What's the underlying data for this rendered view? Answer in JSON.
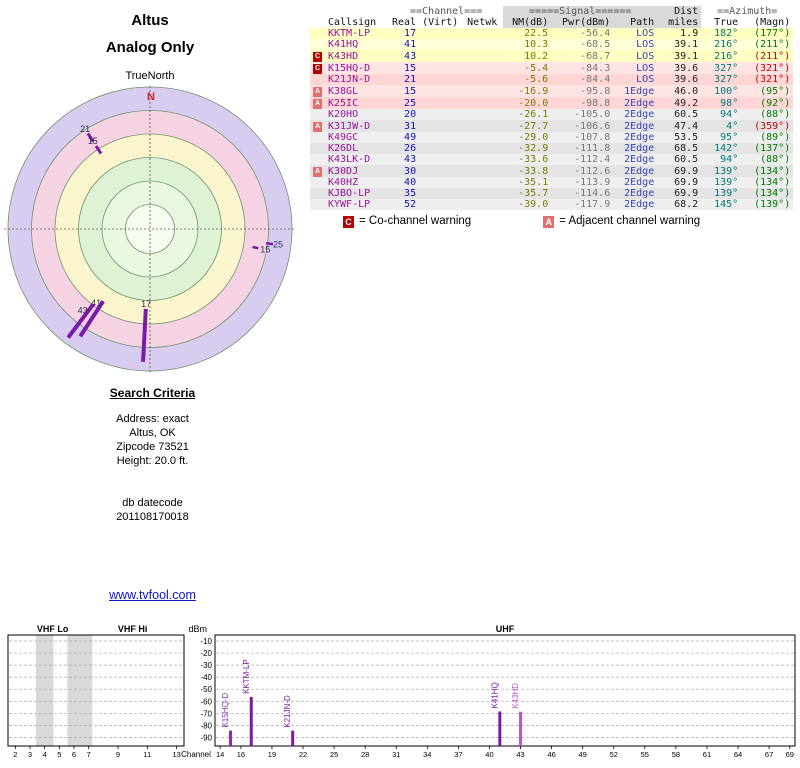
{
  "radar": {
    "title": "Altus",
    "subtitle": "Analog Only",
    "north_ref_label": "TrueNorth",
    "north_label": "N",
    "ring_colors": [
      "#d8cdf0",
      "#f6d3e3",
      "#faf5cd",
      "#def3d4",
      "#eaf8e2",
      "#f7fcf1"
    ],
    "ring_radii": [
      142,
      118.5,
      95,
      71.5,
      48,
      24.5
    ],
    "spoke_color": "#7a1ba6",
    "label_color": "#333355",
    "spokes": [
      {
        "channel": "17",
        "az": 183,
        "r1": 80,
        "r2": 133,
        "label_r": 75,
        "label_dx": 0,
        "width": 4
      },
      {
        "channel": "41",
        "az": 213,
        "r1": 86,
        "r2": 128,
        "label_r": 88,
        "label_dx": -6,
        "width": 4
      },
      {
        "channel": "43",
        "az": 217,
        "r1": 94,
        "r2": 136,
        "label_r": 102,
        "label_dx": -6,
        "width": 4
      },
      {
        "channel": "21",
        "az": 327,
        "r1": 104,
        "r2": 114,
        "label_r": 119,
        "label_dx": 0,
        "width": 3
      },
      {
        "channel": "15",
        "az": 327,
        "r1": 90,
        "r2": 99,
        "label_r": 105,
        "label_dx": 0,
        "width": 3
      },
      {
        "channel": "15",
        "az": 100,
        "r1": 104,
        "r2": 110,
        "label_r": 117,
        "label_dx": 0,
        "width": 2.5
      },
      {
        "channel": "25",
        "az": 97,
        "r1": 117,
        "r2": 124,
        "label_r": 129,
        "label_dx": 0,
        "width": 2.5
      }
    ]
  },
  "table": {
    "group_headers": [
      "",
      "==Channel===",
      "=====Signal======",
      "Dist",
      "==Azimuth="
    ],
    "col_headers": [
      "",
      "Callsign",
      "Real",
      "(Virt)",
      "Netwk",
      "NM(dB)",
      "Pwr(dBm)",
      "Path",
      "miles",
      "True",
      "(Magn)"
    ],
    "rows": [
      {
        "warn": "",
        "callsign": "KKTM-LP",
        "real": "17",
        "virt": "",
        "netwk": "",
        "nm": "22.5",
        "pwr": "-56.4",
        "path": "LOS",
        "miles": "1.9",
        "true": "182°",
        "magn": "(177°)",
        "tier": "yellow",
        "magn_red": false
      },
      {
        "warn": "",
        "callsign": "K41HQ",
        "real": "41",
        "virt": "",
        "netwk": "",
        "nm": "10.3",
        "pwr": "-68.5",
        "path": "LOS",
        "miles": "39.1",
        "true": "216°",
        "magn": "(211°)",
        "tier": "yellow",
        "magn_red": false
      },
      {
        "warn": "C",
        "callsign": "K43HD",
        "real": "43",
        "virt": "",
        "netwk": "",
        "nm": "10.2",
        "pwr": "-68.7",
        "path": "LOS",
        "miles": "39.1",
        "true": "216°",
        "magn": "(211°)",
        "tier": "yellow",
        "magn_red": true
      },
      {
        "warn": "C",
        "callsign": "K15HQ-D",
        "real": "15",
        "virt": "",
        "netwk": "",
        "nm": "-5.4",
        "pwr": "-84.3",
        "path": "LOS",
        "miles": "39.6",
        "true": "327°",
        "magn": "(321°)",
        "tier": "pink",
        "magn_red": true
      },
      {
        "warn": "",
        "callsign": "K21JN-D",
        "real": "21",
        "virt": "",
        "netwk": "",
        "nm": "-5.6",
        "pwr": "-84.4",
        "path": "LOS",
        "miles": "39.6",
        "true": "327°",
        "magn": "(321°)",
        "tier": "pink",
        "magn_red": true
      },
      {
        "warn": "A",
        "callsign": "K38GL",
        "real": "15",
        "virt": "",
        "netwk": "",
        "nm": "-16.9",
        "pwr": "-95.8",
        "path": "1Edge",
        "miles": "46.0",
        "true": "100°",
        "magn": "(95°)",
        "tier": "pink",
        "magn_red": false
      },
      {
        "warn": "A",
        "callsign": "K25IC",
        "real": "25",
        "virt": "",
        "netwk": "",
        "nm": "-20.0",
        "pwr": "-98.8",
        "path": "2Edge",
        "miles": "49.2",
        "true": "98°",
        "magn": "(92°)",
        "tier": "pink",
        "magn_red": false
      },
      {
        "warn": "",
        "callsign": "K20HO",
        "real": "20",
        "virt": "",
        "netwk": "",
        "nm": "-26.1",
        "pwr": "-105.0",
        "path": "2Edge",
        "miles": "60.5",
        "true": "94°",
        "magn": "(88°)",
        "tier": "gray",
        "magn_red": false
      },
      {
        "warn": "A",
        "callsign": "K31JW-D",
        "real": "31",
        "virt": "",
        "netwk": "",
        "nm": "-27.7",
        "pwr": "-106.6",
        "path": "2Edge",
        "miles": "47.4",
        "true": "4°",
        "magn": "(359°)",
        "tier": "gray",
        "magn_red": true
      },
      {
        "warn": "",
        "callsign": "K49GC",
        "real": "49",
        "virt": "",
        "netwk": "",
        "nm": "-29.0",
        "pwr": "-107.8",
        "path": "2Edge",
        "miles": "53.5",
        "true": "95°",
        "magn": "(89°)",
        "tier": "gray",
        "magn_red": false
      },
      {
        "warn": "",
        "callsign": "K26DL",
        "real": "26",
        "virt": "",
        "netwk": "",
        "nm": "-32.9",
        "pwr": "-111.8",
        "path": "2Edge",
        "miles": "68.5",
        "true": "142°",
        "magn": "(137°)",
        "tier": "gray",
        "magn_red": false
      },
      {
        "warn": "",
        "callsign": "K43LK-D",
        "real": "43",
        "virt": "",
        "netwk": "",
        "nm": "-33.6",
        "pwr": "-112.4",
        "path": "2Edge",
        "miles": "60.5",
        "true": "94°",
        "magn": "(88°)",
        "tier": "gray",
        "magn_red": false
      },
      {
        "warn": "A",
        "callsign": "K30DJ",
        "real": "30",
        "virt": "",
        "netwk": "",
        "nm": "-33.8",
        "pwr": "-112.6",
        "path": "2Edge",
        "miles": "69.9",
        "true": "139°",
        "magn": "(134°)",
        "tier": "gray",
        "magn_red": false
      },
      {
        "warn": "",
        "callsign": "K40HZ",
        "real": "40",
        "virt": "",
        "netwk": "",
        "nm": "-35.1",
        "pwr": "-113.9",
        "path": "2Edge",
        "miles": "69.9",
        "true": "139°",
        "magn": "(134°)",
        "tier": "gray",
        "magn_red": false
      },
      {
        "warn": "",
        "callsign": "KJBO-LP",
        "real": "35",
        "virt": "",
        "netwk": "",
        "nm": "-35.7",
        "pwr": "-114.6",
        "path": "2Edge",
        "miles": "69.9",
        "true": "139°",
        "magn": "(134°)",
        "tier": "gray",
        "magn_red": false
      },
      {
        "warn": "",
        "callsign": "KYWF-LP",
        "real": "52",
        "virt": "",
        "netwk": "",
        "nm": "-39.0",
        "pwr": "-117.9",
        "path": "2Edge",
        "miles": "68.2",
        "true": "145°",
        "magn": "(139°)",
        "tier": "gray",
        "magn_red": false
      }
    ]
  },
  "legend": {
    "c_symbol": "C",
    "c_text": "= Co-channel warning",
    "a_symbol": "A",
    "a_text": "= Adjacent channel warning"
  },
  "search": {
    "title": "Search Criteria",
    "lines": [
      "Address: exact",
      "Altus, OK",
      "Zipcode 73521",
      "Height: 20.0 ft."
    ],
    "db_label": "db datecode",
    "db_value": "201108170018"
  },
  "link": {
    "text": "www.tvfool.com"
  },
  "chart_data": {
    "type": "bar",
    "title": "",
    "ylabel": "dBm",
    "xlabel": "Channel",
    "ylim": [
      -95,
      -5
    ],
    "yticks": [
      -10,
      -20,
      -30,
      -40,
      -50,
      -60,
      -70,
      -80,
      -90
    ],
    "grid": true,
    "sections": [
      {
        "label": "VHF Lo"
      },
      {
        "label": "VHF Hi"
      },
      {
        "label": "UHF"
      }
    ],
    "vhf_channels": [
      2,
      3,
      4,
      5,
      6,
      7,
      9,
      11,
      13
    ],
    "uhf_channels": [
      14,
      16,
      19,
      22,
      25,
      28,
      31,
      34,
      37,
      40,
      43,
      46,
      49,
      52,
      55,
      58,
      61,
      64,
      67,
      69
    ],
    "gray_bands_vhf": [
      [
        3.9,
        5.1
      ],
      [
        6.05,
        7.75
      ]
    ],
    "series": [
      {
        "callsign": "K15HQ-D",
        "channel": 15,
        "dbm": -84.3,
        "color": "#8a2bb0"
      },
      {
        "callsign": "KKTM-LP",
        "channel": 17,
        "dbm": -56.4,
        "color": "#7d17a5"
      },
      {
        "callsign": "K21JN-D",
        "channel": 21,
        "dbm": -84.4,
        "color": "#7d17a5"
      },
      {
        "callsign": "K41HQ",
        "channel": 41,
        "dbm": -68.5,
        "color": "#7d17a5"
      },
      {
        "callsign": "K43HD",
        "channel": 43,
        "dbm": -68.7,
        "color": "#bb55cc"
      }
    ]
  }
}
